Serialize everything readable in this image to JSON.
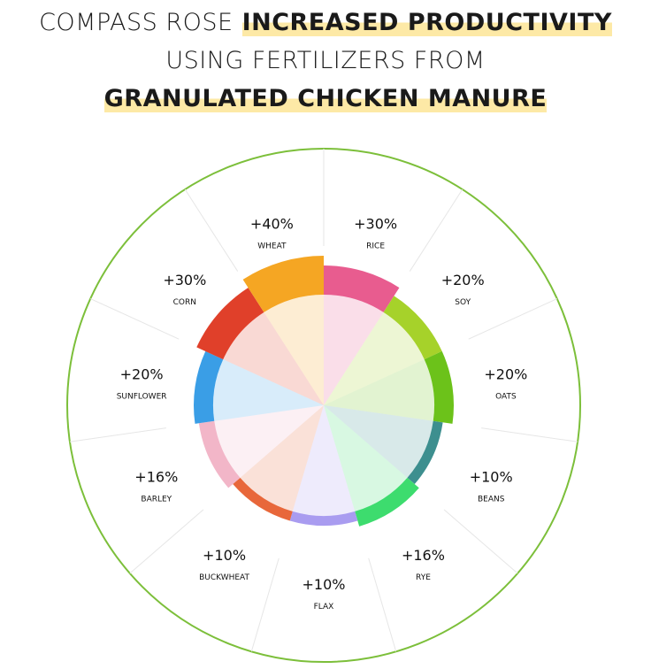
{
  "chart_data": {
    "type": "rose",
    "title_lines": [
      [
        {
          "text": "COMPASS ROSE",
          "bold": false
        },
        {
          "text": "INCREASED PRODUCTIVITY",
          "bold": true
        }
      ],
      [
        {
          "text": "USING FERTILIZERS FROM",
          "bold": false
        }
      ],
      [
        {
          "text": "GRANULATED CHICKEN MANURE",
          "bold": true
        }
      ]
    ],
    "categories": [
      "RICE",
      "SOY",
      "OATS",
      "BEANS",
      "RYE",
      "FLAX",
      "BUCKWHEAT",
      "BARLEY",
      "SUNFLOWER",
      "CORN",
      "WHEAT"
    ],
    "values": [
      30,
      20,
      20,
      10,
      16,
      10,
      10,
      16,
      20,
      30,
      40
    ],
    "value_labels": [
      "+30%",
      "+20%",
      "+20%",
      "+10%",
      "+16%",
      "+10%",
      "+10%",
      "+16%",
      "+20%",
      "+30%",
      "+40%"
    ],
    "colors": [
      "#e85c8f",
      "#a6d22a",
      "#6cc21a",
      "#3d8f8f",
      "#3ddc6e",
      "#a99cf0",
      "#e8673a",
      "#f2b6c8",
      "#3a9ee6",
      "#e0402a",
      "#f5a623"
    ]
  }
}
